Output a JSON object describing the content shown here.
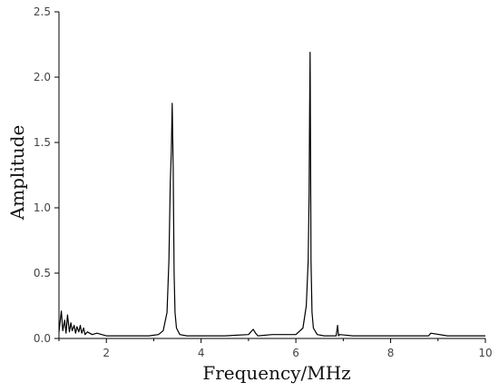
{
  "chart_data": {
    "type": "line",
    "title": "",
    "xlabel": "Frequency/MHz",
    "ylabel": "Amplitude",
    "xlim": [
      1,
      10
    ],
    "ylim": [
      0,
      2.5
    ],
    "x_ticks": [
      2,
      4,
      6,
      8,
      10
    ],
    "x_tick_labels": [
      "2",
      "4",
      "6",
      "8",
      "10"
    ],
    "y_ticks": [
      0,
      0.5,
      1.0,
      1.5,
      2.0,
      2.5
    ],
    "y_tick_labels": [
      "0.0",
      "0.5",
      "1.0",
      "1.5",
      "2.0",
      "2.5"
    ],
    "grid": false,
    "line_color": "#000000",
    "series": [
      {
        "x": [
          1.0,
          1.05,
          1.08,
          1.12,
          1.15,
          1.18,
          1.22,
          1.25,
          1.28,
          1.32,
          1.35,
          1.38,
          1.42,
          1.45,
          1.48,
          1.52,
          1.55,
          1.6,
          1.7,
          1.8,
          2.0,
          2.3,
          2.6,
          2.9,
          3.1,
          3.2,
          3.28,
          3.32,
          3.35,
          3.37,
          3.39,
          3.41,
          3.43,
          3.45,
          3.48,
          3.55,
          3.7,
          4.0,
          4.5,
          5.0,
          5.1,
          5.15,
          5.2,
          5.5,
          6.0,
          6.15,
          6.22,
          6.26,
          6.28,
          6.29,
          6.3,
          6.31,
          6.32,
          6.34,
          6.37,
          6.45,
          6.6,
          6.85,
          6.88,
          6.9,
          6.92,
          7.2,
          7.6,
          8.0,
          8.8,
          8.85,
          9.2,
          9.6,
          10.0
        ],
        "y": [
          0.05,
          0.21,
          0.06,
          0.14,
          0.04,
          0.18,
          0.05,
          0.12,
          0.06,
          0.1,
          0.04,
          0.09,
          0.05,
          0.1,
          0.04,
          0.08,
          0.03,
          0.05,
          0.03,
          0.04,
          0.02,
          0.02,
          0.02,
          0.02,
          0.03,
          0.06,
          0.2,
          0.6,
          1.2,
          1.42,
          1.8,
          1.3,
          0.5,
          0.2,
          0.08,
          0.03,
          0.02,
          0.02,
          0.02,
          0.03,
          0.07,
          0.04,
          0.02,
          0.03,
          0.03,
          0.08,
          0.25,
          0.6,
          1.1,
          1.78,
          2.19,
          1.4,
          0.6,
          0.2,
          0.08,
          0.03,
          0.02,
          0.02,
          0.1,
          0.02,
          0.03,
          0.02,
          0.02,
          0.02,
          0.02,
          0.04,
          0.02,
          0.02,
          0.02
        ]
      }
    ]
  }
}
